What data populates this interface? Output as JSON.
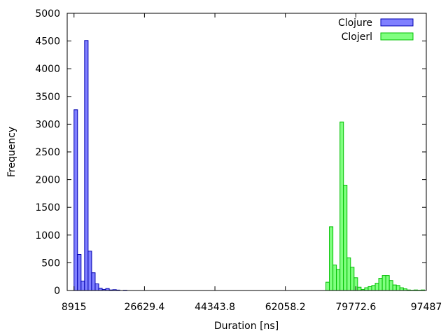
{
  "chart_data": {
    "type": "bar",
    "xlabel": "Duration [ns]",
    "ylabel": "Frequency",
    "xlim": [
      7200,
      97487
    ],
    "ylim": [
      0,
      5000
    ],
    "xticks": [
      8915,
      26629.4,
      44343.8,
      62058.2,
      79772.6,
      97487
    ],
    "yticks": [
      0,
      500,
      1000,
      1500,
      2000,
      2500,
      3000,
      3500,
      4000,
      4500,
      5000
    ],
    "bin_width": 886,
    "legend_position": "top-right",
    "grid": false,
    "series": [
      {
        "name": "Clojure",
        "color": "#8080ff",
        "stroke": "#0000b0",
        "x": [
          9358,
          10244,
          11130,
          12016,
          12902,
          13788,
          14674,
          15560,
          16446,
          17332,
          18218,
          19104,
          19990,
          21762
        ],
        "values": [
          3260,
          650,
          170,
          4510,
          710,
          320,
          120,
          40,
          20,
          35,
          10,
          15,
          8,
          5
        ]
      },
      {
        "name": "Clojerl",
        "color": "#80ff80",
        "stroke": "#00c000",
        "x": [
          72682,
          73568,
          74454,
          75340,
          76226,
          77112,
          77998,
          78884,
          79770,
          80656,
          81542,
          82428,
          83314,
          84200,
          85086,
          85972,
          86858,
          87744,
          88630,
          89516,
          90402,
          91288,
          92174,
          93060,
          93946,
          94832,
          95718,
          96604
        ],
        "values": [
          150,
          1150,
          460,
          380,
          3040,
          1900,
          590,
          420,
          230,
          60,
          20,
          50,
          70,
          90,
          130,
          220,
          270,
          270,
          180,
          100,
          90,
          50,
          30,
          10,
          5,
          10,
          5,
          10
        ]
      }
    ]
  }
}
